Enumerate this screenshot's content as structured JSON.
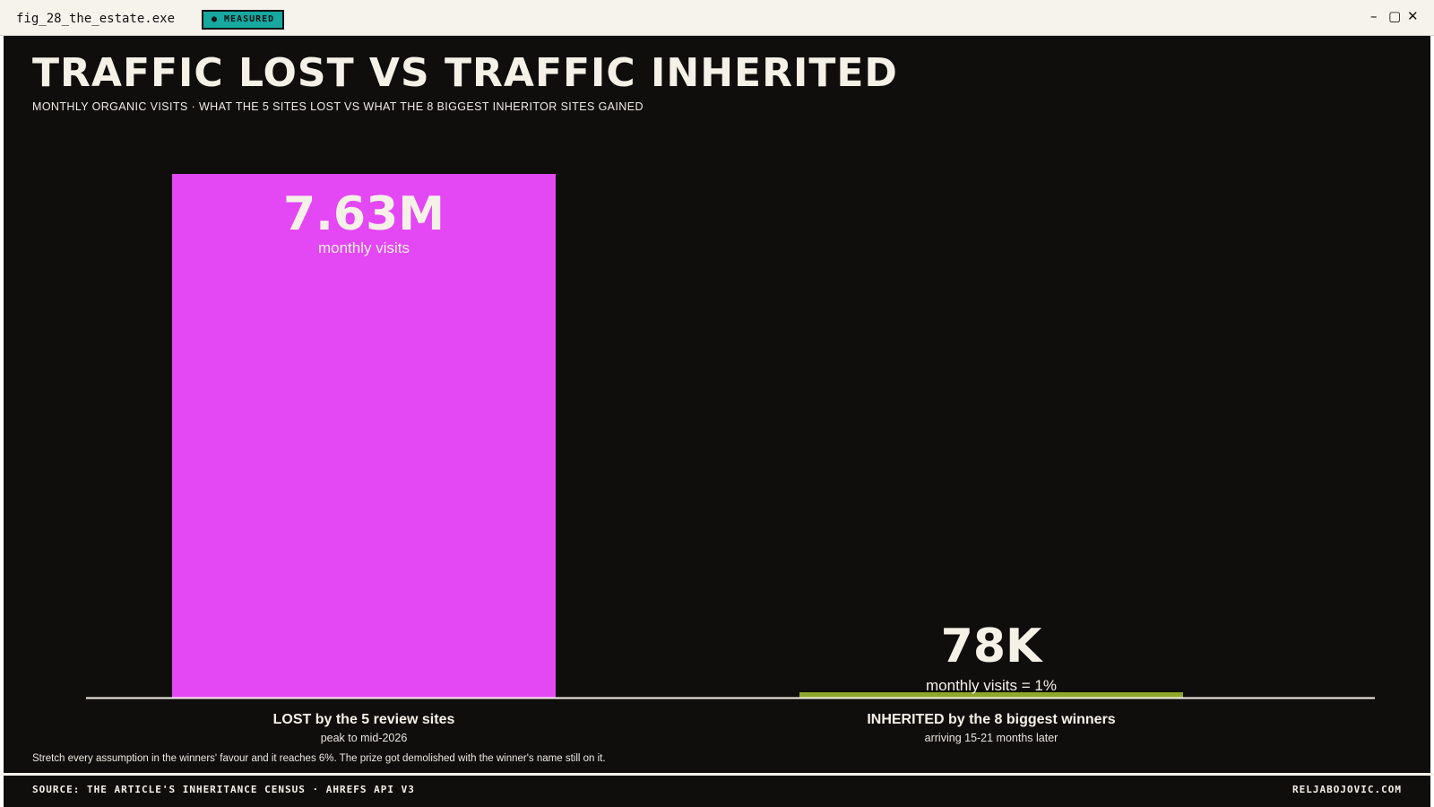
{
  "window": {
    "title": "fig_28_the_estate.exe",
    "badge": "● MEASURED",
    "badge_color": "#17a8a0",
    "controls": [
      "minimize-icon",
      "maximize-icon",
      "close-icon"
    ]
  },
  "header": {
    "title": "TRAFFIC LOST VS TRAFFIC INHERITED",
    "subtitle": "MONTHLY ORGANIC VISITS · WHAT THE 5 SITES LOST VS WHAT THE 8 BIGGEST INHERITOR SITES GAINED"
  },
  "chart_data": {
    "type": "bar",
    "title": "TRAFFIC LOST VS TRAFFIC INHERITED",
    "subtitle": "MONTHLY ORGANIC VISITS · WHAT THE 5 SITES LOST VS WHAT THE 8 BIGGEST INHERITOR SITES GAINED",
    "categories": [
      "LOST by the 5 review sites",
      "INHERITED by the 8 biggest winners"
    ],
    "category_sublabels": [
      "peak to mid-2026",
      "arriving 15-21 months later"
    ],
    "values": [
      7630000,
      78000
    ],
    "value_labels": [
      "7.63M",
      "78K"
    ],
    "value_sublabels": [
      "monthly visits",
      "monthly visits = 1%"
    ],
    "colors": [
      "#e447f4",
      "#8fa72b"
    ],
    "ylim": [
      0,
      7630000
    ],
    "grid": false,
    "legend": "none",
    "xlabel": "",
    "ylabel": ""
  },
  "note": "Stretch every assumption in the winners' favour and it reaches 6%. The prize got demolished with the winner's name still on it.",
  "footer": {
    "source": "SOURCE: THE ARTICLE'S INHERITANCE CENSUS · AHREFS API V3",
    "site": "RELJABOJOVIC.COM"
  }
}
